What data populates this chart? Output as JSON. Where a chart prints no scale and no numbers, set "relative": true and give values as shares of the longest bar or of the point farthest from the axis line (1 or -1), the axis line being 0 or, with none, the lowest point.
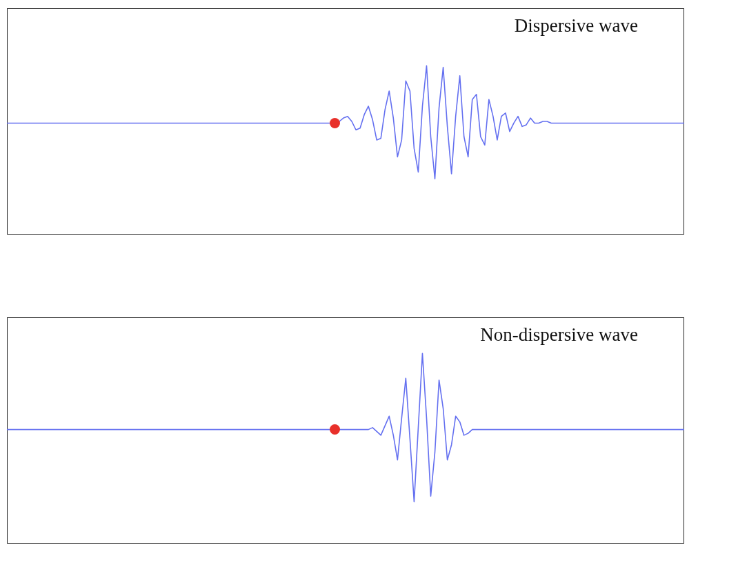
{
  "chart_data": [
    {
      "type": "line",
      "title": "Dispersive wave",
      "relative": true,
      "categories": [
        null,
        null,
        null,
        null,
        null,
        null,
        null,
        null,
        null,
        null,
        null,
        null,
        null,
        null,
        null,
        null,
        null,
        null,
        null,
        null,
        null,
        null,
        null,
        null,
        null,
        null,
        null,
        null,
        null,
        null,
        null,
        null,
        null,
        null,
        null,
        null,
        null,
        null,
        null,
        null,
        null,
        null,
        null,
        null,
        null,
        null,
        null,
        null,
        null,
        null,
        null,
        null,
        null,
        null,
        null,
        null,
        null,
        null,
        null,
        null,
        null,
        null,
        null,
        null,
        null,
        null,
        null,
        null,
        null,
        null,
        null,
        null,
        null,
        null,
        null,
        null,
        null,
        null,
        null,
        null,
        null,
        null,
        null,
        null,
        null,
        null,
        null,
        null,
        null,
        null,
        null,
        null,
        null,
        null,
        null,
        null,
        null,
        null,
        null,
        null,
        null,
        null,
        null,
        null,
        null,
        null,
        null,
        null,
        null,
        null,
        null,
        null,
        null,
        null,
        null,
        null,
        null,
        null,
        null,
        null,
        null,
        null,
        null,
        null,
        null,
        null,
        null,
        null,
        null,
        null,
        null,
        null,
        null,
        null,
        null,
        null,
        null,
        null,
        null,
        null,
        null,
        null,
        null,
        null,
        null,
        null,
        null,
        null,
        null,
        null,
        null,
        null,
        null,
        null,
        null,
        null,
        null,
        null,
        null,
        null,
        null,
        null,
        null,
        null
      ],
      "series": [
        {
          "color": "#6470f0",
          "values": [
            0.66,
            0.66,
            0.66,
            0.66,
            0.66,
            0.66,
            0.66,
            0.66,
            0.66,
            0.66,
            0.66,
            0.66,
            0.66,
            0.66,
            0.66,
            0.66,
            0.66,
            0.66,
            0.66,
            0.66,
            0.66,
            0.66,
            0.66,
            0.66,
            0.66,
            0.66,
            0.66,
            0.66,
            0.66,
            0.66,
            0.66,
            0.66,
            0.66,
            0.66,
            0.66,
            0.66,
            0.66,
            0.66,
            0.66,
            0.66,
            0.66,
            0.66,
            0.66,
            0.66,
            0.66,
            0.66,
            0.66,
            0.66,
            0.66,
            0.66,
            0.66,
            0.66,
            0.66,
            0.66,
            0.66,
            0.66,
            0.66,
            0.66,
            0.66,
            0.66,
            0.66,
            0.66,
            0.66,
            0.66,
            0.66,
            0.66,
            0.66,
            0.66,
            0.66,
            0.66,
            0.66,
            0.66,
            0.66,
            0.66,
            0.66,
            0.66,
            0.66,
            0.66,
            0.66,
            0.66,
            0.67,
            0.69,
            0.7,
            0.67,
            0.62,
            0.63,
            0.71,
            0.76,
            0.68,
            0.56,
            0.57,
            0.74,
            0.85,
            0.69,
            0.46,
            0.56,
            0.91,
            0.85,
            0.51,
            0.37,
            0.76,
            1.0,
            0.58,
            0.33,
            0.75,
            0.99,
            0.64,
            0.36,
            0.7,
            0.94,
            0.58,
            0.46,
            0.8,
            0.83,
            0.58,
            0.53,
            0.8,
            0.7,
            0.56,
            0.7,
            0.72,
            0.61,
            0.66,
            0.7,
            0.64,
            0.65,
            0.69,
            0.66,
            0.66,
            0.67,
            0.67,
            0.66,
            0.66,
            0.66,
            0.66,
            0.66,
            0.66,
            0.66,
            0.66,
            0.66,
            0.66,
            0.66,
            0.66,
            0.66,
            0.66,
            0.66,
            0.66,
            0.66,
            0.66,
            0.66,
            0.66,
            0.66,
            0.66,
            0.66,
            0.66,
            0.66,
            0.66,
            0.66,
            0.66,
            0.66,
            0.66,
            0.66,
            0.66,
            0.66
          ]
        }
      ]
    },
    {
      "type": "line",
      "title": "Non-dispersive wave",
      "relative": true,
      "categories": [
        null,
        null,
        null,
        null,
        null,
        null,
        null,
        null,
        null,
        null,
        null,
        null,
        null,
        null,
        null,
        null,
        null,
        null,
        null,
        null,
        null,
        null,
        null,
        null,
        null,
        null,
        null,
        null,
        null,
        null,
        null,
        null,
        null,
        null,
        null,
        null,
        null,
        null,
        null,
        null,
        null,
        null,
        null,
        null,
        null,
        null,
        null,
        null,
        null,
        null,
        null,
        null,
        null,
        null,
        null,
        null,
        null,
        null,
        null,
        null,
        null,
        null,
        null,
        null,
        null,
        null,
        null,
        null,
        null,
        null,
        null,
        null,
        null,
        null,
        null,
        null,
        null,
        null,
        null,
        null,
        null,
        null,
        null,
        null,
        null,
        null,
        null,
        null,
        null,
        null,
        null,
        null,
        null,
        null,
        null,
        null,
        null,
        null,
        null,
        null,
        null,
        null,
        null,
        null,
        null,
        null,
        null,
        null,
        null,
        null,
        null,
        null,
        null,
        null,
        null,
        null,
        null,
        null,
        null,
        null,
        null,
        null,
        null,
        null,
        null,
        null,
        null,
        null,
        null,
        null,
        null,
        null,
        null,
        null,
        null,
        null,
        null,
        null,
        null,
        null,
        null,
        null,
        null,
        null,
        null,
        null,
        null,
        null,
        null,
        null,
        null,
        null,
        null,
        null,
        null,
        null,
        null,
        null,
        null,
        null,
        null,
        null,
        null,
        null
      ],
      "series": [
        {
          "color": "#6470f0",
          "values": [
            0.6,
            0.6,
            0.6,
            0.6,
            0.6,
            0.6,
            0.6,
            0.6,
            0.6,
            0.6,
            0.6,
            0.6,
            0.6,
            0.6,
            0.6,
            0.6,
            0.6,
            0.6,
            0.6,
            0.6,
            0.6,
            0.6,
            0.6,
            0.6,
            0.6,
            0.6,
            0.6,
            0.6,
            0.6,
            0.6,
            0.6,
            0.6,
            0.6,
            0.6,
            0.6,
            0.6,
            0.6,
            0.6,
            0.6,
            0.6,
            0.6,
            0.6,
            0.6,
            0.6,
            0.6,
            0.6,
            0.6,
            0.6,
            0.6,
            0.6,
            0.6,
            0.6,
            0.6,
            0.6,
            0.6,
            0.6,
            0.6,
            0.6,
            0.6,
            0.6,
            0.6,
            0.6,
            0.6,
            0.6,
            0.6,
            0.6,
            0.6,
            0.6,
            0.6,
            0.6,
            0.6,
            0.6,
            0.6,
            0.6,
            0.6,
            0.6,
            0.6,
            0.6,
            0.6,
            0.6,
            0.6,
            0.6,
            0.6,
            0.6,
            0.6,
            0.6,
            0.6,
            0.6,
            0.61,
            0.59,
            0.57,
            0.62,
            0.67,
            0.57,
            0.44,
            0.66,
            0.87,
            0.55,
            0.22,
            0.61,
            1.0,
            0.66,
            0.25,
            0.48,
            0.86,
            0.71,
            0.44,
            0.52,
            0.67,
            0.64,
            0.57,
            0.58,
            0.6,
            0.6,
            0.6,
            0.6,
            0.6,
            0.6,
            0.6,
            0.6,
            0.6,
            0.6,
            0.6,
            0.6,
            0.6,
            0.6,
            0.6,
            0.6,
            0.6,
            0.6,
            0.6,
            0.6,
            0.6,
            0.6,
            0.6,
            0.6,
            0.6,
            0.6,
            0.6,
            0.6,
            0.6,
            0.6,
            0.6,
            0.6,
            0.6,
            0.6,
            0.6,
            0.6,
            0.6,
            0.6,
            0.6,
            0.6,
            0.6,
            0.6,
            0.6,
            0.6,
            0.6,
            0.6,
            0.6,
            0.6,
            0.6,
            0.6,
            0.6,
            0.6
          ]
        }
      ]
    }
  ]
}
